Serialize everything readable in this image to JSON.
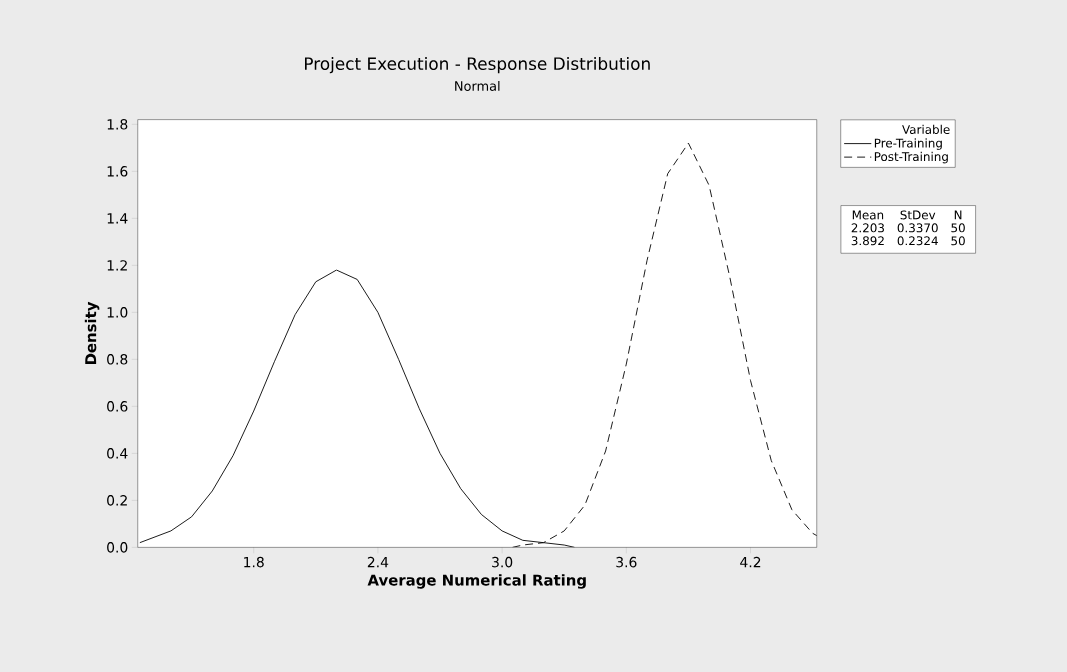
{
  "chart_data": {
    "type": "line",
    "title": "Project Execution - Response Distribution",
    "subtitle": "Normal",
    "xlabel": "Average Numerical Rating",
    "ylabel": "Density",
    "legend_title": "Variable",
    "legend": "top right",
    "xlim": [
      1.24,
      4.52
    ],
    "ylim": [
      0,
      1.82
    ],
    "xticks": [
      1.8,
      2.4,
      {
        "value": 3,
        "label": "3.0"
      },
      3.6,
      4.2
    ],
    "yticks": [
      {
        "value": 0,
        "label": "0.0"
      },
      0.2,
      0.4,
      0.6,
      0.8,
      {
        "value": 1,
        "label": "1.0"
      },
      1.2,
      1.4,
      1.6,
      1.8
    ],
    "series": [
      {
        "name": "Pre-Training",
        "color": "#000000",
        "line_style": "solid",
        "x": [
          1.25,
          1.4,
          1.5,
          1.6,
          1.7,
          1.8,
          1.9,
          2.0,
          2.1,
          2.2,
          2.3,
          2.4,
          2.5,
          2.6,
          2.7,
          2.8,
          2.9,
          3.0,
          3.1,
          3.2,
          3.3,
          3.35
        ],
        "values": [
          0.02,
          0.07,
          0.13,
          0.24,
          0.39,
          0.58,
          0.79,
          0.99,
          1.13,
          1.18,
          1.14,
          1.0,
          0.8,
          0.59,
          0.4,
          0.25,
          0.14,
          0.07,
          0.03,
          0.02,
          0.01,
          0.0
        ]
      },
      {
        "name": "Post-Training",
        "color": "#000000",
        "line_style": "dashed",
        "x": [
          3.05,
          3.1,
          3.2,
          3.3,
          3.4,
          3.5,
          3.6,
          3.7,
          3.8,
          3.9,
          4.0,
          4.1,
          4.2,
          4.3,
          4.4,
          4.5,
          4.52
        ],
        "values": [
          0.0,
          0.01,
          0.02,
          0.07,
          0.18,
          0.41,
          0.78,
          1.22,
          1.59,
          1.72,
          1.54,
          1.15,
          0.71,
          0.37,
          0.16,
          0.06,
          0.05
        ]
      }
    ],
    "annotations": [
      "Mean",
      "StDev",
      "N",
      "2.203",
      "0.3370",
      "50",
      "3.892",
      "0.2324",
      "50"
    ]
  }
}
